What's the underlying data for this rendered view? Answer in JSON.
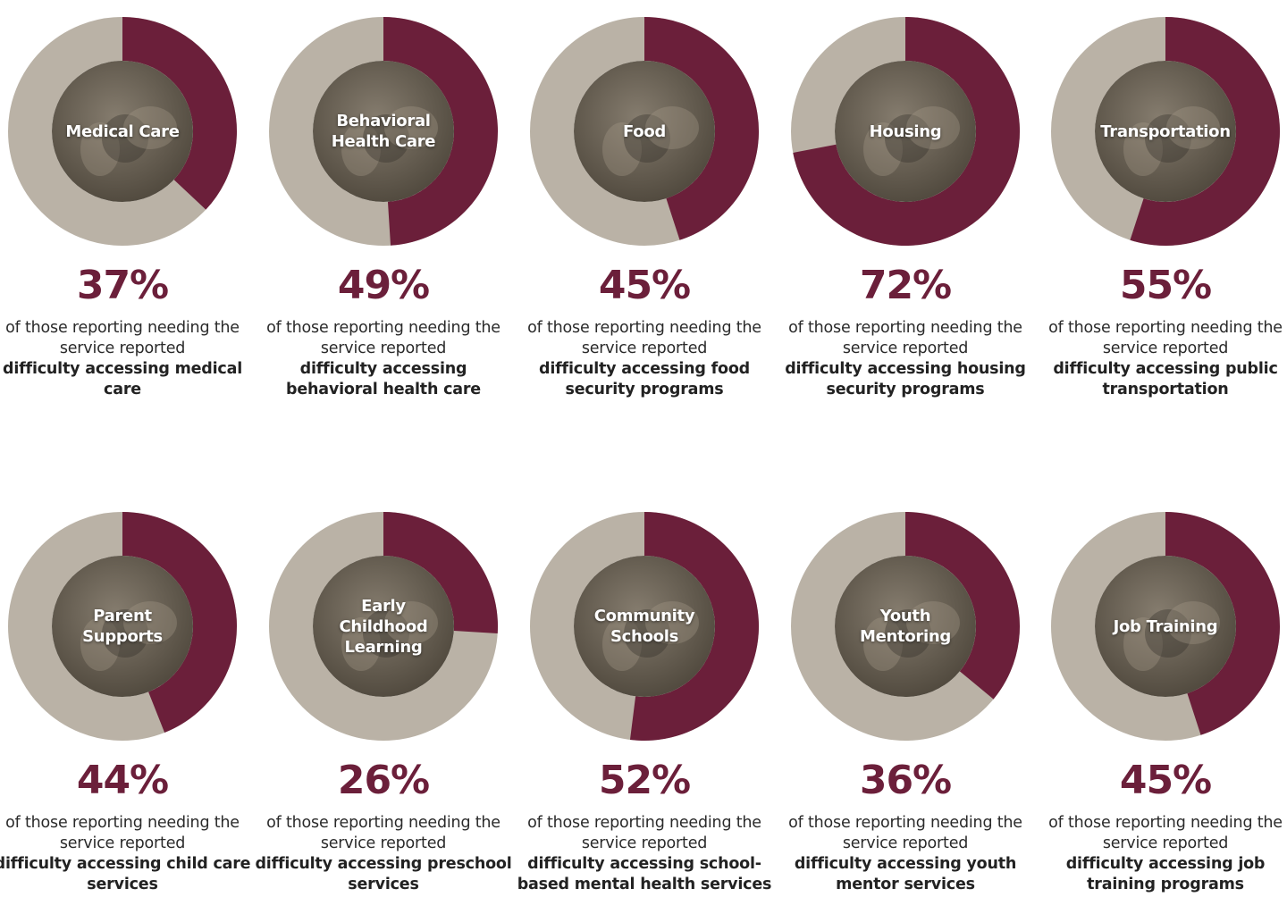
{
  "colors": {
    "accent": "#6b1f3a",
    "track": "#bab2a6",
    "photo_overlay": "#4a4338"
  },
  "chart_data": {
    "type": "donut",
    "charts": [
      {
        "label": "Medical Care",
        "value": 37,
        "pct_text": "37%",
        "desc_plain": "of those reporting needing the service reported",
        "desc_bold": "difficulty accessing medical care"
      },
      {
        "label": "Behavioral Health Care",
        "value": 49,
        "pct_text": "49%",
        "desc_plain": "of those reporting needing the service reported",
        "desc_bold": "difficulty accessing behavioral health care"
      },
      {
        "label": "Food",
        "value": 45,
        "pct_text": "45%",
        "desc_plain": "of those reporting needing the service reported",
        "desc_bold": "difficulty accessing food security programs"
      },
      {
        "label": "Housing",
        "value": 72,
        "pct_text": "72%",
        "desc_plain": "of those reporting needing the service reported",
        "desc_bold": "difficulty accessing housing security programs"
      },
      {
        "label": "Transportation",
        "value": 55,
        "pct_text": "55%",
        "desc_plain": "of those reporting needing the service reported",
        "desc_bold": "difficulty accessing public transportation"
      },
      {
        "label": "Parent Supports",
        "value": 44,
        "pct_text": "44%",
        "desc_plain": "of those reporting needing the service reported",
        "desc_bold": "difficulty accessing child care services"
      },
      {
        "label": "Early Childhood Learning",
        "value": 26,
        "pct_text": "26%",
        "desc_plain": "of those reporting needing the service reported",
        "desc_bold": "difficulty accessing preschool services"
      },
      {
        "label": "Community Schools",
        "value": 52,
        "pct_text": "52%",
        "desc_plain": "of those reporting needing the service reported",
        "desc_bold": "difficulty accessing school-based mental health services"
      },
      {
        "label": "Youth Mentoring",
        "value": 36,
        "pct_text": "36%",
        "desc_plain": "of those reporting needing the service reported",
        "desc_bold": "difficulty accessing youth mentor services"
      },
      {
        "label": "Job Training",
        "value": 45,
        "pct_text": "45%",
        "desc_plain": "of those reporting needing the service reported",
        "desc_bold": "difficulty accessing job training programs"
      }
    ]
  }
}
